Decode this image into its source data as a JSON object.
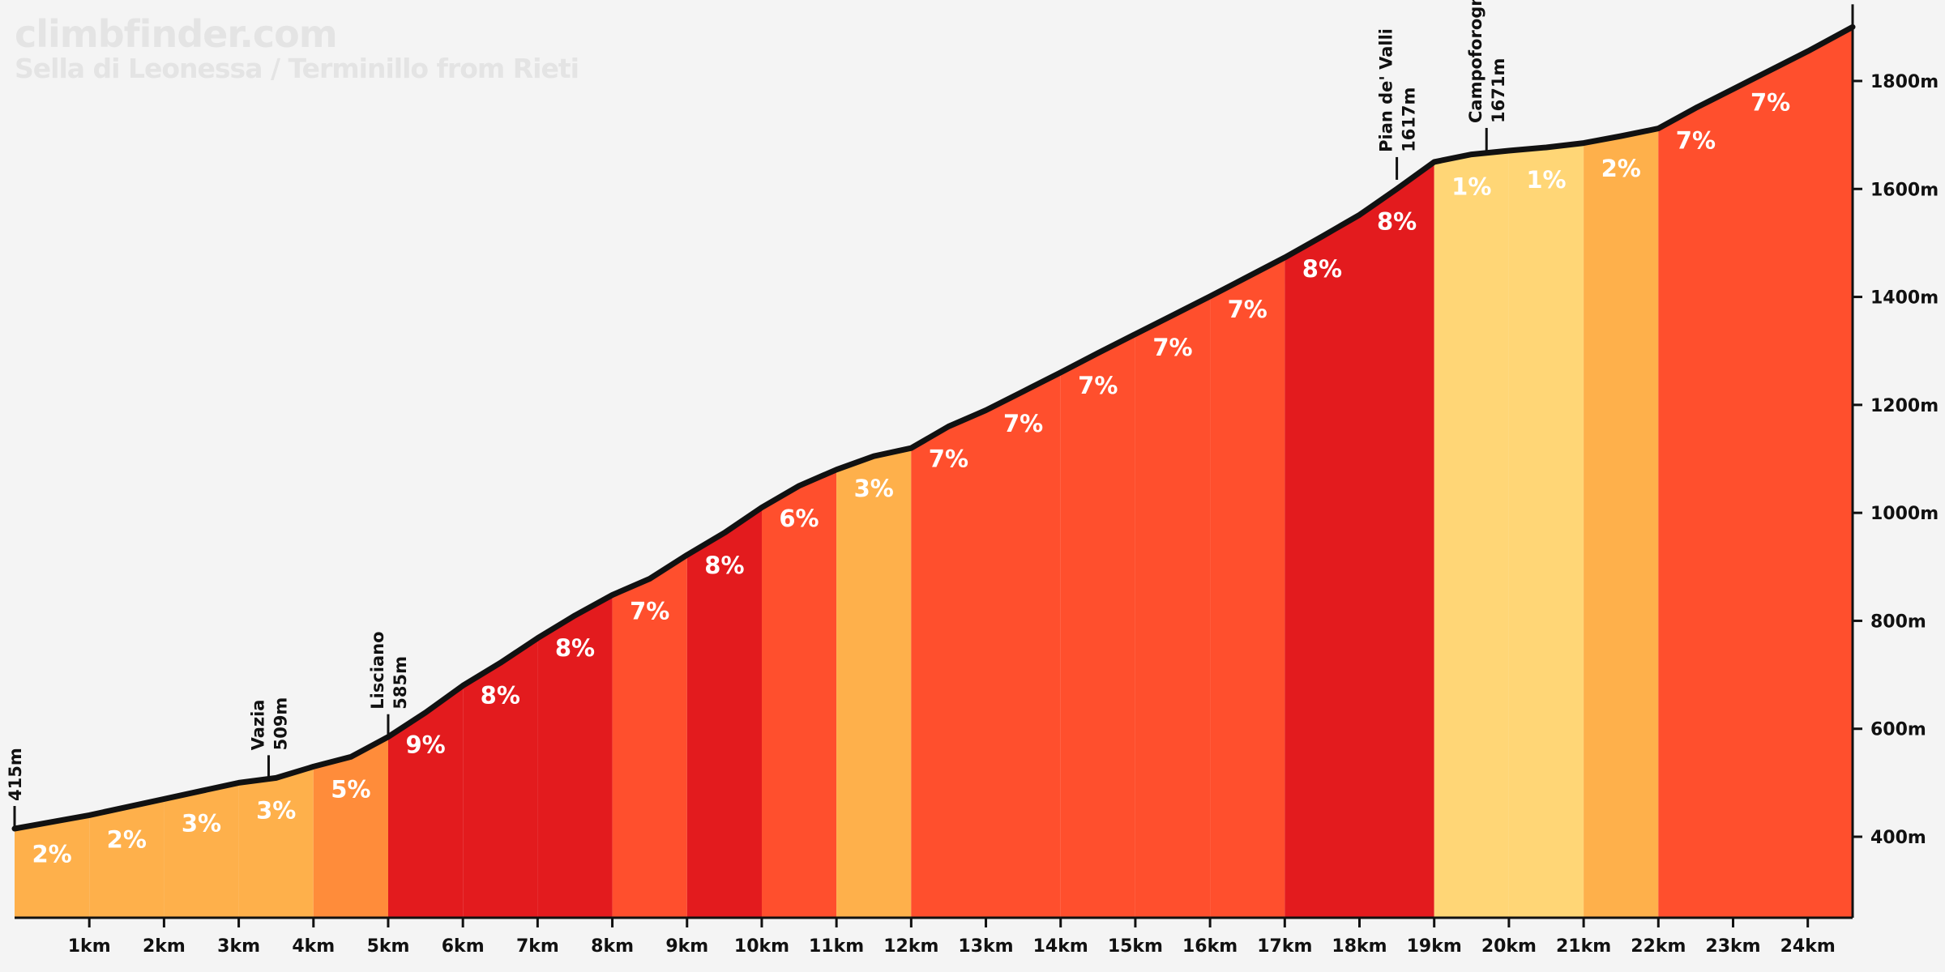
{
  "site": "climbfinder.com",
  "chart_data": {
    "type": "area",
    "title": "Sella di Leonessa / Terminillo from Rieti",
    "xlabel": "",
    "ylabel": "",
    "xlim": [
      0,
      24.6
    ],
    "ylim": [
      250,
      1920
    ],
    "x_ticks": [
      "1km",
      "2km",
      "3km",
      "4km",
      "5km",
      "6km",
      "7km",
      "8km",
      "9km",
      "10km",
      "11km",
      "12km",
      "13km",
      "14km",
      "15km",
      "16km",
      "17km",
      "18km",
      "19km",
      "20km",
      "21km",
      "22km",
      "23km",
      "24km"
    ],
    "y_ticks": [
      "400m",
      "600m",
      "800m",
      "1000m",
      "1200m",
      "1400m",
      "1600m",
      "1800m"
    ],
    "y_tick_values": [
      400,
      600,
      800,
      1000,
      1200,
      1400,
      1600,
      1800
    ],
    "profile": {
      "distance_km": [
        0,
        1,
        2,
        3,
        3.5,
        4,
        4.5,
        5,
        5.5,
        6,
        6.5,
        7,
        7.5,
        8,
        8.5,
        9,
        9.5,
        10,
        10.5,
        11,
        11.5,
        12,
        12.5,
        13,
        13.5,
        14,
        14.5,
        15,
        15.5,
        16,
        16.5,
        17,
        17.5,
        18,
        18.5,
        19,
        19.5,
        20,
        20.5,
        21,
        21.5,
        22,
        22.5,
        23,
        23.5,
        24,
        24.6
      ],
      "elevation_m": [
        415,
        440,
        470,
        500,
        509,
        530,
        548,
        585,
        630,
        680,
        722,
        768,
        810,
        848,
        878,
        922,
        963,
        1010,
        1050,
        1080,
        1105,
        1120,
        1160,
        1190,
        1225,
        1260,
        1296,
        1331,
        1366,
        1401,
        1437,
        1473,
        1512,
        1552,
        1600,
        1650,
        1664,
        1671,
        1677,
        1685,
        1698,
        1712,
        1750,
        1785,
        1820,
        1855,
        1900
      ]
    },
    "segments": [
      {
        "start_km": 0,
        "end_km": 1,
        "grade": "2%",
        "color": "#feb04b"
      },
      {
        "start_km": 1,
        "end_km": 2,
        "grade": "2%",
        "color": "#feb04b"
      },
      {
        "start_km": 2,
        "end_km": 3,
        "grade": "3%",
        "color": "#feb04b"
      },
      {
        "start_km": 3,
        "end_km": 4,
        "grade": "3%",
        "color": "#feb04b"
      },
      {
        "start_km": 4,
        "end_km": 5,
        "grade": "5%",
        "color": "#ff8c3a"
      },
      {
        "start_km": 5,
        "end_km": 6,
        "grade": "9%",
        "color": "#e31b1e"
      },
      {
        "start_km": 6,
        "end_km": 7,
        "grade": "8%",
        "color": "#e31b1e"
      },
      {
        "start_km": 7,
        "end_km": 8,
        "grade": "8%",
        "color": "#e31b1e"
      },
      {
        "start_km": 8,
        "end_km": 9,
        "grade": "7%",
        "color": "#ff4f2d"
      },
      {
        "start_km": 9,
        "end_km": 10,
        "grade": "8%",
        "color": "#e31b1e"
      },
      {
        "start_km": 10,
        "end_km": 11,
        "grade": "6%",
        "color": "#ff4f2d"
      },
      {
        "start_km": 11,
        "end_km": 12,
        "grade": "3%",
        "color": "#feb04b"
      },
      {
        "start_km": 12,
        "end_km": 13,
        "grade": "7%",
        "color": "#ff4f2d"
      },
      {
        "start_km": 13,
        "end_km": 14,
        "grade": "7%",
        "color": "#ff4f2d"
      },
      {
        "start_km": 14,
        "end_km": 15,
        "grade": "7%",
        "color": "#ff4f2d"
      },
      {
        "start_km": 15,
        "end_km": 16,
        "grade": "7%",
        "color": "#ff4f2d"
      },
      {
        "start_km": 16,
        "end_km": 17,
        "grade": "7%",
        "color": "#ff4f2d"
      },
      {
        "start_km": 17,
        "end_km": 18,
        "grade": "8%",
        "color": "#e31b1e"
      },
      {
        "start_km": 18,
        "end_km": 19,
        "grade": "8%",
        "color": "#e31b1e"
      },
      {
        "start_km": 19,
        "end_km": 20,
        "grade": "1%",
        "color": "#ffd676"
      },
      {
        "start_km": 20,
        "end_km": 21,
        "grade": "1%",
        "color": "#ffd676"
      },
      {
        "start_km": 21,
        "end_km": 22,
        "grade": "2%",
        "color": "#feb04b"
      },
      {
        "start_km": 22,
        "end_km": 23,
        "grade": "7%",
        "color": "#ff4f2d"
      },
      {
        "start_km": 23,
        "end_km": 24.6,
        "grade": "7%",
        "color": "#ff4f2d"
      }
    ],
    "waypoints": [
      {
        "km": 0,
        "name": "",
        "elevation": "415m",
        "elevation_m": 415
      },
      {
        "km": 3.4,
        "name": "Vazia",
        "elevation": "509m",
        "elevation_m": 509
      },
      {
        "km": 5,
        "name": "Lisciano",
        "elevation": "585m",
        "elevation_m": 585
      },
      {
        "km": 18.5,
        "name": "Pian de' Valli",
        "elevation": "1617m",
        "elevation_m": 1617
      },
      {
        "km": 19.7,
        "name": "Campoforogna",
        "elevation": "1671m",
        "elevation_m": 1671
      },
      {
        "km": 24.6,
        "name": "",
        "elevation": "1900m",
        "elevation_m": 1900
      }
    ],
    "colors": {
      "background": "#f4f4f4",
      "profile_line": "#111111",
      "axis": "#111111",
      "grade_label": "#ffffff",
      "watermark": "#e4e4e4"
    }
  }
}
